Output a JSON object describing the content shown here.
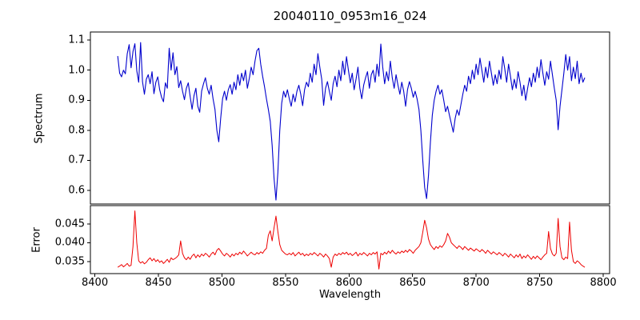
{
  "chart_data": [
    {
      "type": "line",
      "panel": "spectrum",
      "title": "20040110_0953m16_024",
      "ylabel": "Spectrum",
      "color": "#0000cd",
      "line_width": 1.1,
      "legend": "none",
      "grid": false,
      "xlim": [
        8396.5,
        8805
      ],
      "ylim": [
        0.555,
        1.127
      ],
      "yticks": [
        0.6,
        0.7,
        0.8,
        0.9,
        1.0,
        1.1
      ],
      "ytick_labels": [
        "0.6",
        "0.7",
        "0.8",
        "0.9",
        "1.0",
        "1.1"
      ],
      "x_start": 8418,
      "x_step": 1.5,
      "values": [
        1.047,
        0.99,
        0.978,
        1.0,
        0.988,
        1.055,
        1.085,
        1.008,
        1.062,
        1.088,
        0.998,
        0.96,
        1.092,
        0.962,
        0.92,
        0.97,
        0.985,
        0.955,
        0.995,
        0.922,
        0.96,
        0.978,
        0.935,
        0.91,
        0.895,
        0.958,
        0.94,
        1.073,
        1.0,
        1.058,
        0.985,
        1.012,
        0.942,
        0.965,
        0.93,
        0.902,
        0.94,
        0.958,
        0.912,
        0.87,
        0.915,
        0.94,
        0.88,
        0.86,
        0.93,
        0.955,
        0.975,
        0.94,
        0.92,
        0.95,
        0.905,
        0.87,
        0.8,
        0.762,
        0.84,
        0.905,
        0.93,
        0.9,
        0.935,
        0.952,
        0.92,
        0.96,
        0.935,
        0.985,
        0.95,
        0.99,
        0.965,
        1.0,
        0.94,
        0.972,
        1.01,
        0.985,
        1.03,
        1.065,
        1.073,
        1.02,
        0.98,
        0.945,
        0.905,
        0.87,
        0.83,
        0.75,
        0.64,
        0.568,
        0.66,
        0.8,
        0.89,
        0.93,
        0.91,
        0.935,
        0.905,
        0.88,
        0.92,
        0.895,
        0.93,
        0.95,
        0.92,
        0.882,
        0.935,
        0.96,
        0.945,
        0.99,
        0.96,
        1.02,
        0.985,
        1.055,
        1.01,
        0.97,
        0.883,
        0.94,
        0.962,
        0.93,
        0.9,
        0.955,
        0.98,
        0.945,
        1.0,
        0.965,
        1.03,
        0.985,
        1.045,
        1.0,
        0.958,
        0.99,
        0.935,
        0.97,
        1.01,
        0.94,
        0.905,
        0.95,
        0.975,
        0.995,
        0.94,
        0.985,
        1.0,
        0.96,
        1.02,
        0.98,
        1.087,
        1.01,
        0.955,
        0.995,
        0.965,
        1.03,
        0.975,
        0.94,
        0.985,
        0.95,
        0.92,
        0.96,
        0.93,
        0.88,
        0.935,
        0.962,
        0.94,
        0.91,
        0.93,
        0.905,
        0.87,
        0.8,
        0.7,
        0.61,
        0.573,
        0.65,
        0.76,
        0.85,
        0.9,
        0.93,
        0.95,
        0.92,
        0.935,
        0.9,
        0.862,
        0.88,
        0.85,
        0.822,
        0.794,
        0.84,
        0.868,
        0.85,
        0.885,
        0.92,
        0.95,
        0.93,
        0.98,
        0.955,
        1.0,
        0.97,
        1.02,
        0.985,
        1.04,
        1.0,
        0.96,
        1.01,
        0.975,
        1.03,
        0.99,
        0.95,
        0.985,
        0.955,
        1.0,
        0.97,
        1.045,
        1.005,
        0.96,
        1.02,
        0.98,
        0.935,
        0.97,
        0.94,
        0.995,
        0.96,
        0.915,
        0.95,
        0.9,
        0.94,
        0.975,
        0.945,
        0.99,
        0.96,
        1.01,
        0.975,
        1.035,
        0.99,
        0.95,
        0.995,
        0.97,
        1.03,
        0.985,
        0.94,
        0.9,
        0.802,
        0.88,
        0.935,
        0.99,
        1.052,
        1.0,
        1.045,
        0.965,
        1.01,
        0.972,
        1.03,
        0.955,
        0.99,
        0.96,
        0.975
      ]
    },
    {
      "type": "line",
      "panel": "error",
      "ylabel": "Error",
      "xlabel": "Wavelength",
      "color": "#ee0000",
      "line_width": 1.0,
      "legend": "none",
      "grid": false,
      "xlim": [
        8396.5,
        8805
      ],
      "ylim": [
        0.0318,
        0.0499
      ],
      "yticks": [
        0.035,
        0.04,
        0.045
      ],
      "ytick_labels": [
        "0.035",
        "0.040",
        "0.045"
      ],
      "xticks": [
        8400,
        8450,
        8500,
        8550,
        8600,
        8650,
        8700,
        8750,
        8800
      ],
      "xtick_labels": [
        "8400",
        "8450",
        "8500",
        "8550",
        "8600",
        "8650",
        "8700",
        "8750",
        "8800"
      ],
      "x_start": 8418,
      "x_step": 1.5,
      "values": [
        0.0335,
        0.0338,
        0.0342,
        0.0336,
        0.034,
        0.0345,
        0.0338,
        0.034,
        0.039,
        0.0485,
        0.04,
        0.0352,
        0.0346,
        0.035,
        0.0344,
        0.0348,
        0.0355,
        0.036,
        0.0352,
        0.0358,
        0.035,
        0.0355,
        0.0348,
        0.0352,
        0.0345,
        0.035,
        0.0356,
        0.0348,
        0.036,
        0.0355,
        0.0358,
        0.0362,
        0.0368,
        0.0405,
        0.0372,
        0.036,
        0.0355,
        0.0362,
        0.0356,
        0.0365,
        0.037,
        0.036,
        0.0368,
        0.0362,
        0.037,
        0.0365,
        0.0372,
        0.0368,
        0.0362,
        0.037,
        0.0375,
        0.0368,
        0.038,
        0.0385,
        0.0378,
        0.037,
        0.0365,
        0.0372,
        0.0368,
        0.0362,
        0.037,
        0.0365,
        0.0372,
        0.0368,
        0.0375,
        0.037,
        0.0378,
        0.0372,
        0.0365,
        0.037,
        0.0375,
        0.037,
        0.0368,
        0.0374,
        0.037,
        0.0376,
        0.0372,
        0.038,
        0.0385,
        0.042,
        0.0432,
        0.0405,
        0.044,
        0.0471,
        0.043,
        0.0395,
        0.038,
        0.0375,
        0.037,
        0.0368,
        0.0372,
        0.0368,
        0.0374,
        0.0365,
        0.037,
        0.0375,
        0.0368,
        0.0372,
        0.0365,
        0.037,
        0.0366,
        0.0372,
        0.0368,
        0.0374,
        0.037,
        0.0365,
        0.0372,
        0.0368,
        0.0362,
        0.037,
        0.0365,
        0.0358,
        0.0335,
        0.0362,
        0.037,
        0.0366,
        0.0372,
        0.0368,
        0.0374,
        0.037,
        0.0375,
        0.0368,
        0.0372,
        0.0366,
        0.037,
        0.0375,
        0.0365,
        0.0372,
        0.0368,
        0.0374,
        0.037,
        0.0365,
        0.0372,
        0.0368,
        0.0374,
        0.037,
        0.0376,
        0.033,
        0.0372,
        0.0368,
        0.0375,
        0.037,
        0.0378,
        0.0372,
        0.038,
        0.0374,
        0.037,
        0.0376,
        0.0372,
        0.0378,
        0.0374,
        0.038,
        0.0375,
        0.0382,
        0.0378,
        0.0372,
        0.038,
        0.0385,
        0.039,
        0.04,
        0.0428,
        0.046,
        0.044,
        0.041,
        0.0395,
        0.0388,
        0.0382,
        0.039,
        0.0385,
        0.0392,
        0.0388,
        0.0395,
        0.0405,
        0.0425,
        0.0415,
        0.04,
        0.0395,
        0.039,
        0.0385,
        0.0392,
        0.0388,
        0.0382,
        0.039,
        0.0385,
        0.038,
        0.0386,
        0.0382,
        0.0378,
        0.0384,
        0.038,
        0.0376,
        0.0382,
        0.0378,
        0.0372,
        0.038,
        0.0375,
        0.037,
        0.0376,
        0.0372,
        0.0368,
        0.0374,
        0.037,
        0.0365,
        0.0372,
        0.0368,
        0.0362,
        0.037,
        0.0365,
        0.036,
        0.0368,
        0.0362,
        0.037,
        0.0358,
        0.0365,
        0.036,
        0.0368,
        0.0362,
        0.0356,
        0.0364,
        0.0358,
        0.0365,
        0.036,
        0.0355,
        0.0362,
        0.0368,
        0.0372,
        0.043,
        0.0385,
        0.037,
        0.0365,
        0.0372,
        0.0465,
        0.039,
        0.036,
        0.0355,
        0.0362,
        0.0358,
        0.0455,
        0.038,
        0.035,
        0.0345,
        0.0352,
        0.0348,
        0.0342,
        0.0338,
        0.0335
      ]
    }
  ]
}
